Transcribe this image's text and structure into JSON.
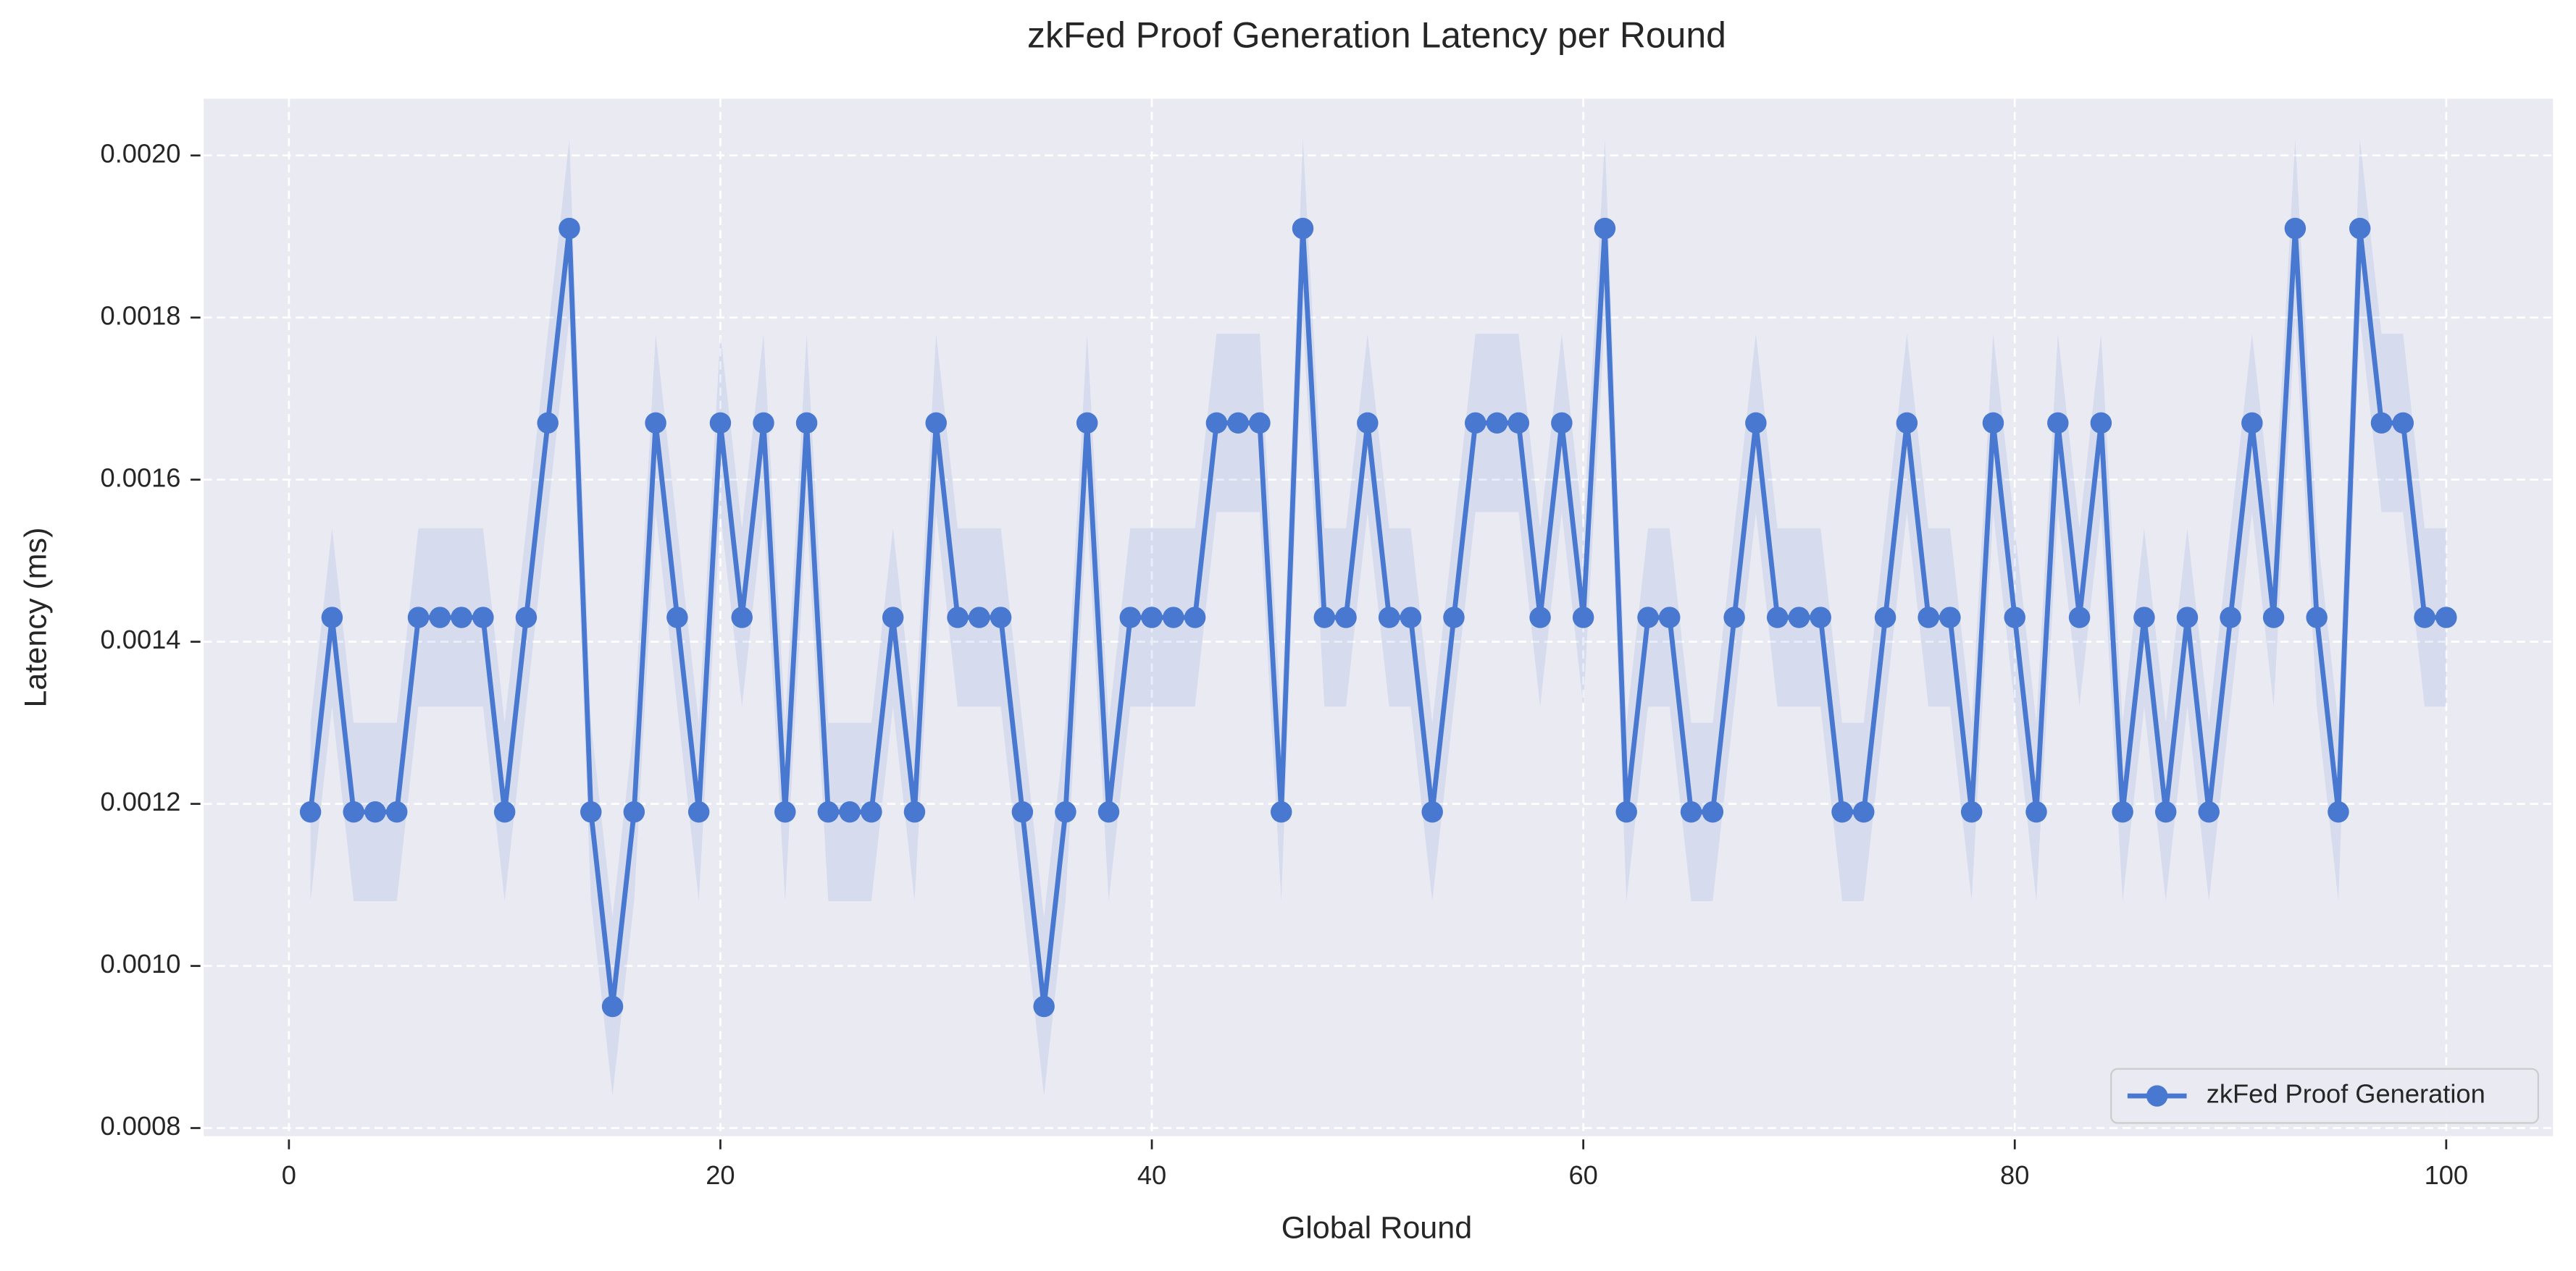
{
  "chart_data": {
    "type": "line",
    "title": "zkFed Proof Generation Latency per Round",
    "x_label": "Global Round",
    "y_label": "Latency (ms)",
    "x": [
      1,
      2,
      3,
      4,
      5,
      6,
      7,
      8,
      9,
      10,
      11,
      12,
      13,
      14,
      15,
      16,
      17,
      18,
      19,
      20,
      21,
      22,
      23,
      24,
      25,
      26,
      27,
      28,
      29,
      30,
      31,
      32,
      33,
      34,
      35,
      36,
      37,
      38,
      39,
      40,
      41,
      42,
      43,
      44,
      45,
      46,
      47,
      48,
      49,
      50,
      51,
      52,
      53,
      54,
      55,
      56,
      57,
      58,
      59,
      60,
      61,
      62,
      63,
      64,
      65,
      66,
      67,
      68,
      69,
      70,
      71,
      72,
      73,
      74,
      75,
      76,
      77,
      78,
      79,
      80,
      81,
      82,
      83,
      84,
      85,
      86,
      87,
      88,
      89,
      90,
      91,
      92,
      93,
      94,
      95,
      96,
      97,
      98,
      99,
      100
    ],
    "series": [
      {
        "name": "zkFed Proof Generation",
        "color": "#4878d0",
        "error": 0.00011,
        "values": [
          0.00119,
          0.00143,
          0.00119,
          0.00119,
          0.00119,
          0.00143,
          0.00143,
          0.00143,
          0.00143,
          0.00119,
          0.00143,
          0.00167,
          0.00191,
          0.00119,
          0.00095,
          0.00119,
          0.00167,
          0.00143,
          0.00119,
          0.00167,
          0.00143,
          0.00167,
          0.00119,
          0.00167,
          0.00119,
          0.00119,
          0.00119,
          0.00143,
          0.00119,
          0.00167,
          0.00143,
          0.00143,
          0.00143,
          0.00119,
          0.00095,
          0.00119,
          0.00167,
          0.00119,
          0.00143,
          0.00143,
          0.00143,
          0.00143,
          0.00167,
          0.00167,
          0.00167,
          0.00119,
          0.00191,
          0.00143,
          0.00143,
          0.00167,
          0.00143,
          0.00143,
          0.00119,
          0.00143,
          0.00167,
          0.00167,
          0.00167,
          0.00143,
          0.00167,
          0.00143,
          0.00191,
          0.00119,
          0.00143,
          0.00143,
          0.00119,
          0.00119,
          0.00143,
          0.00167,
          0.00143,
          0.00143,
          0.00143,
          0.00119,
          0.00119,
          0.00143,
          0.00167,
          0.00143,
          0.00143,
          0.00119,
          0.00167,
          0.00143,
          0.00119,
          0.00167,
          0.00143,
          0.00167,
          0.00119,
          0.00143,
          0.00119,
          0.00143,
          0.00119,
          0.00143,
          0.00167,
          0.00143,
          0.00191,
          0.00143,
          0.00119,
          0.00191,
          0.00167,
          0.00167,
          0.00143,
          0.00143
        ]
      }
    ],
    "xlim": [
      -3.95,
      104.95
    ],
    "xticks": [
      0,
      20,
      40,
      60,
      80,
      100
    ],
    "ylim": [
      0.00079,
      0.00207
    ],
    "yticks": [
      {
        "value": 0.0008,
        "label": "0.0008"
      },
      {
        "value": 0.001,
        "label": "0.0010"
      },
      {
        "value": 0.0012,
        "label": "0.0012"
      },
      {
        "value": 0.0014,
        "label": "0.0014"
      },
      {
        "value": 0.0016,
        "label": "0.0016"
      },
      {
        "value": 0.0018,
        "label": "0.0018"
      },
      {
        "value": 0.002,
        "label": "0.0020"
      }
    ],
    "grid": true,
    "legend": "lower right"
  }
}
